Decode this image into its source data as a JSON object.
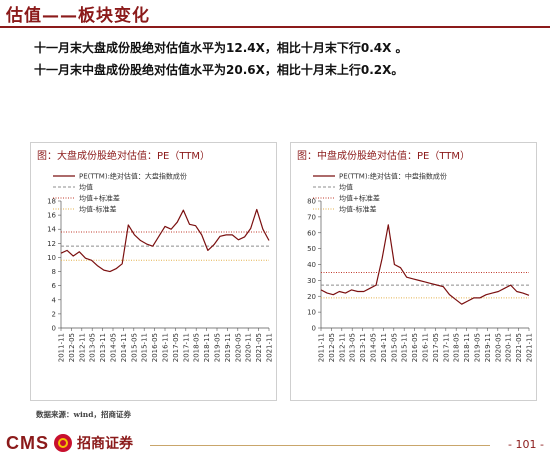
{
  "header": {
    "title": "估值——板块变化"
  },
  "bullets": [
    "十一月末大盘成份股绝对估值水平为12.4X，相比十月末下行0.4X 。",
    "十一月末中盘成份股绝对估值水平为20.6X，相比十月末上行0.2X。"
  ],
  "source": "数据来源：wind，招商证券",
  "footer": {
    "logo_text": "CMS",
    "logo_cn": "招商证券",
    "page_number": "- 101 -"
  },
  "colors": {
    "brand": "#8b1a1a",
    "pe_line": "#7b1010",
    "mean_line": "#8c8c8c",
    "plus_std": "#c0392b",
    "minus_std": "#e3b04b"
  },
  "chart_data": [
    {
      "type": "line",
      "title": "图：大盘成份股绝对估值：PE（TTM）",
      "x_ticks": [
        "2011-11",
        "2012-05",
        "2012-11",
        "2013-05",
        "2013-11",
        "2014-05",
        "2014-11",
        "2015-05",
        "2015-11",
        "2016-05",
        "2016-11",
        "2017-05",
        "2017-11",
        "2018-05",
        "2018-11",
        "2019-05",
        "2019-11",
        "2020-05",
        "2020-11",
        "2021-05",
        "2021-11"
      ],
      "ylim": [
        0,
        18
      ],
      "y_ticks": [
        0,
        2,
        4,
        6,
        8,
        10,
        12,
        14,
        16,
        18
      ],
      "series": [
        {
          "name": "PE(TTM):绝对估值：大盘指数成份",
          "style": "solid",
          "values": [
            10.6,
            11.0,
            10.2,
            10.8,
            9.9,
            9.6,
            8.8,
            8.2,
            8.0,
            8.4,
            9.1,
            14.6,
            13.2,
            12.4,
            11.9,
            11.6,
            13.0,
            14.4,
            14.0,
            15.0,
            16.7,
            14.7,
            14.5,
            13.2,
            11.0,
            11.8,
            13.0,
            13.2,
            13.2,
            12.5,
            12.9,
            14.1,
            16.8,
            14.0,
            12.4
          ]
        },
        {
          "name": "均值",
          "style": "dashed",
          "constant": 11.6
        },
        {
          "name": "均值+标准差",
          "style": "dotted",
          "constant": 13.6
        },
        {
          "name": "均值-标准差",
          "style": "dotted",
          "constant": 9.6
        }
      ]
    },
    {
      "type": "line",
      "title": "图：中盘成份股绝对估值：PE（TTM）",
      "x_ticks": [
        "2011-11",
        "2012-05",
        "2012-11",
        "2013-05",
        "2013-11",
        "2014-05",
        "2014-11",
        "2015-05",
        "2015-11",
        "2016-05",
        "2016-11",
        "2017-05",
        "2017-11",
        "2018-05",
        "2018-11",
        "2019-05",
        "2019-11",
        "2020-05",
        "2020-11",
        "2021-05",
        "2021-11"
      ],
      "ylim": [
        0,
        80
      ],
      "y_ticks": [
        0,
        10,
        20,
        30,
        40,
        50,
        60,
        70,
        80
      ],
      "series": [
        {
          "name": "PE(TTM):绝对估值：中盘指数成份",
          "style": "solid",
          "values": [
            24,
            22,
            21,
            23,
            22,
            24,
            23,
            23,
            25,
            27,
            44,
            65,
            40,
            38,
            32,
            31,
            30,
            29,
            28,
            27,
            26,
            21,
            18,
            15,
            17,
            19,
            19,
            21,
            22,
            23,
            25,
            27,
            23,
            22,
            20.6
          ]
        },
        {
          "name": "均值",
          "style": "dashed",
          "constant": 27
        },
        {
          "name": "均值+标准差",
          "style": "dotted",
          "constant": 35
        },
        {
          "name": "均值-标准差",
          "style": "dotted",
          "constant": 19
        }
      ]
    }
  ]
}
